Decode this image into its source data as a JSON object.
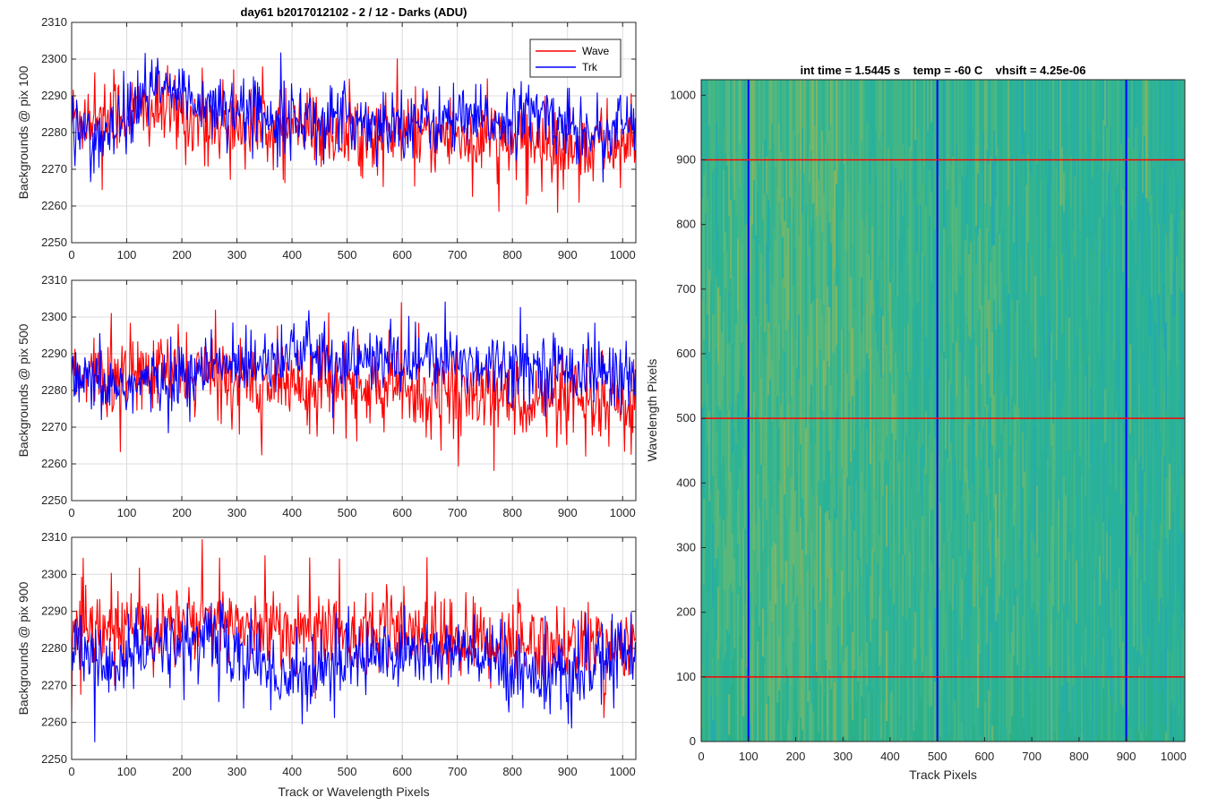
{
  "chart_data": [
    {
      "type": "line",
      "title": "day61 b2017012102 - 2 / 12 - Darks (ADU)",
      "xlabel": "",
      "ylabel": "Backgrounds @ pix 100",
      "xlim": [
        0,
        1024
      ],
      "ylim": [
        2250,
        2310
      ],
      "xticks": [
        0,
        100,
        200,
        300,
        400,
        500,
        600,
        700,
        800,
        900,
        1000
      ],
      "yticks": [
        2250,
        2260,
        2270,
        2280,
        2290,
        2300,
        2310
      ],
      "grid": true,
      "legend": "top-right",
      "series": [
        {
          "name": "Wave",
          "color": "#ff0000",
          "mean": 2280,
          "noise": 5.5,
          "trend": [
            [
              0,
              2284
            ],
            [
              150,
              2286
            ],
            [
              300,
              2282
            ],
            [
              500,
              2280
            ],
            [
              700,
              2279
            ],
            [
              850,
              2277
            ],
            [
              1024,
              2276
            ]
          ]
        },
        {
          "name": "Trk",
          "color": "#0000ff",
          "mean": 2283,
          "noise": 4.5,
          "trend": [
            [
              0,
              2283
            ],
            [
              60,
              2277
            ],
            [
              150,
              2292
            ],
            [
              250,
              2288
            ],
            [
              400,
              2284
            ],
            [
              600,
              2283
            ],
            [
              750,
              2283
            ],
            [
              850,
              2285
            ],
            [
              950,
              2280
            ],
            [
              1024,
              2283
            ]
          ]
        }
      ]
    },
    {
      "type": "line",
      "xlabel": "",
      "ylabel": "Backgrounds @ pix 500",
      "xlim": [
        0,
        1024
      ],
      "ylim": [
        2250,
        2310
      ],
      "xticks": [
        0,
        100,
        200,
        300,
        400,
        500,
        600,
        700,
        800,
        900,
        1000
      ],
      "yticks": [
        2250,
        2260,
        2270,
        2280,
        2290,
        2300,
        2310
      ],
      "grid": true,
      "series": [
        {
          "name": "Wave",
          "color": "#ff0000",
          "mean": 2281,
          "noise": 5.5,
          "trend": [
            [
              0,
              2283
            ],
            [
              200,
              2285
            ],
            [
              400,
              2282
            ],
            [
              600,
              2280
            ],
            [
              800,
              2278
            ],
            [
              1024,
              2274
            ]
          ]
        },
        {
          "name": "Trk",
          "color": "#0000ff",
          "mean": 2285,
          "noise": 4.5,
          "trend": [
            [
              0,
              2282
            ],
            [
              100,
              2281
            ],
            [
              200,
              2284
            ],
            [
              400,
              2291
            ],
            [
              500,
              2288
            ],
            [
              700,
              2288
            ],
            [
              800,
              2287
            ],
            [
              900,
              2286
            ],
            [
              1024,
              2284
            ]
          ]
        }
      ]
    },
    {
      "type": "line",
      "xlabel": "Track or Wavelength Pixels",
      "ylabel": "Backgrounds @ pix 900",
      "xlim": [
        0,
        1024
      ],
      "ylim": [
        2250,
        2310
      ],
      "xticks": [
        0,
        100,
        200,
        300,
        400,
        500,
        600,
        700,
        800,
        900,
        1000
      ],
      "yticks": [
        2250,
        2260,
        2270,
        2280,
        2290,
        2300,
        2310
      ],
      "grid": true,
      "series": [
        {
          "name": "Wave",
          "color": "#ff0000",
          "mean": 2283,
          "noise": 5.5,
          "trend": [
            [
              0,
              2283
            ],
            [
              200,
              2287
            ],
            [
              400,
              2285
            ],
            [
              600,
              2284
            ],
            [
              800,
              2282
            ],
            [
              1024,
              2280
            ]
          ]
        },
        {
          "name": "Trk",
          "color": "#0000ff",
          "mean": 2279,
          "noise": 5,
          "trend": [
            [
              0,
              2281
            ],
            [
              60,
              2275
            ],
            [
              150,
              2280
            ],
            [
              250,
              2283
            ],
            [
              400,
              2271
            ],
            [
              500,
              2278
            ],
            [
              700,
              2279
            ],
            [
              900,
              2271
            ],
            [
              1024,
              2281
            ]
          ]
        }
      ]
    },
    {
      "type": "heatmap",
      "title": "int time = 1.5445 s    temp = -60 C    vhsift = 4.25e-06",
      "xlabel": "Track Pixels",
      "ylabel": "Wavelength Pixels",
      "xlim": [
        0,
        1024
      ],
      "ylim": [
        0,
        1024
      ],
      "xticks": [
        0,
        100,
        200,
        300,
        400,
        500,
        600,
        700,
        800,
        900,
        1000
      ],
      "yticks": [
        0,
        100,
        200,
        300,
        400,
        500,
        600,
        700,
        800,
        900,
        1000
      ],
      "colormap": "parula",
      "base_color": "#2bb18a",
      "vertical_markers": {
        "color": "#0000ff",
        "values": [
          100,
          500,
          900
        ]
      },
      "horizontal_markers": {
        "color": "#ff0000",
        "values": [
          100,
          500,
          900
        ]
      }
    }
  ]
}
